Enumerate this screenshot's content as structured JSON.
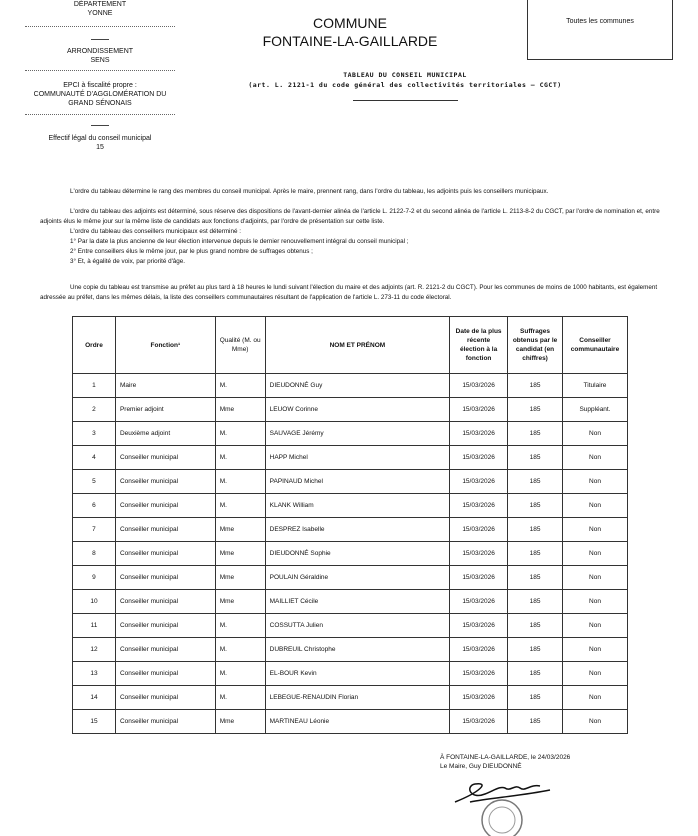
{
  "left": {
    "departement_label": "DÉPARTEMENT",
    "departement": "YONNE",
    "arrondissement_label": "ARRONDISSEMENT",
    "arrondissement": "SENS",
    "epci_label": "EPCI à fiscalité propre :",
    "epci_line1": "COMMUNAUTÉ D'AGGLOMÉRATION DU",
    "epci_line2": "GRAND SÉNONAIS",
    "effectif_label": "Effectif légal du conseil municipal",
    "effectif": "15"
  },
  "header": {
    "commune_label": "COMMUNE",
    "commune": "FONTAINE-LA-GAILLARDE",
    "box_text": "Toutes les communes",
    "title": "TABLEAU DU CONSEIL MUNICIPAL",
    "subtitle": "(art. L. 2121-1 du code général des collectivités territoriales – CGCT)"
  },
  "paragraphs": {
    "p1": "L'ordre du tableau détermine le rang des membres du conseil municipal. Après le maire, prennent rang, dans l'ordre du tableau, les adjoints puis les conseillers municipaux.",
    "p2": "L'ordre du tableau des adjoints est déterminé, sous réserve des dispositions de l'avant-dernier alinéa de l'article L. 2122-7-2 et du second alinéa de l'article L. 2113-8-2 du CGCT, par l'ordre de nomination et, entre adjoints élus le même jour sur la même liste de candidats aux fonctions d'adjoints, par l'ordre de présentation sur cette liste.",
    "p3": "L'ordre du tableau des conseillers municipaux est déterminé :",
    "p4": "1° Par la date la plus ancienne de leur élection intervenue depuis le dernier renouvellement intégral du conseil municipal ;",
    "p5": "2° Entre conseillers élus le même jour, par le plus grand nombre de suffrages obtenus ;",
    "p6": "3° Et, à égalité de voix, par priorité d'âge.",
    "p7": "Une copie du tableau est transmise au préfet au plus tard à 18 heures le lundi suivant l'élection du maire et des adjoints (art. R. 2121-2 du CGCT). Pour les communes de moins de 1000 habitants, est également adressée au préfet, dans les mêmes délais, la liste des conseillers communautaires résultant de l'application de l'article L. 273-11 du code électoral."
  },
  "table": {
    "headers": [
      "Ordre",
      "Fonction¹",
      "Qualité (M. ou Mme)",
      "NOM ET PRÉNOM",
      "Date de la plus récente élection à la fonction",
      "Suffrages obtenus par le candidat (en chiffres)",
      "Conseiller communautaire"
    ],
    "rows": [
      [
        "1",
        "Maire",
        "M.",
        "DIEUDONNÉ Guy",
        "15/03/2026",
        "185",
        "Titulaire"
      ],
      [
        "2",
        "Premier adjoint",
        "Mme",
        "LEUOW Corinne",
        "15/03/2026",
        "185",
        "Suppléant."
      ],
      [
        "3",
        "Deuxième adjoint",
        "M.",
        "SAUVAGE Jérémy",
        "15/03/2026",
        "185",
        "Non"
      ],
      [
        "4",
        "Conseiller municipal",
        "M.",
        "HAPP Michel",
        "15/03/2026",
        "185",
        "Non"
      ],
      [
        "5",
        "Conseiller municipal",
        "M.",
        "PAPINAUD Michel",
        "15/03/2026",
        "185",
        "Non"
      ],
      [
        "6",
        "Conseiller municipal",
        "M.",
        "KLANK William",
        "15/03/2026",
        "185",
        "Non"
      ],
      [
        "7",
        "Conseiller municipal",
        "Mme",
        "DESPREZ Isabelle",
        "15/03/2026",
        "185",
        "Non"
      ],
      [
        "8",
        "Conseiller municipal",
        "Mme",
        "DIEUDONNÉ Sophie",
        "15/03/2026",
        "185",
        "Non"
      ],
      [
        "9",
        "Conseiller municipal",
        "Mme",
        "POULAIN Géraldine",
        "15/03/2026",
        "185",
        "Non"
      ],
      [
        "10",
        "Conseiller municipal",
        "Mme",
        "MAILLIET Cécile",
        "15/03/2026",
        "185",
        "Non"
      ],
      [
        "11",
        "Conseiller municipal",
        "M.",
        "COSSUTTA Julien",
        "15/03/2026",
        "185",
        "Non"
      ],
      [
        "12",
        "Conseiller municipal",
        "M.",
        "DUBREUIL Christophe",
        "15/03/2026",
        "185",
        "Non"
      ],
      [
        "13",
        "Conseiller municipal",
        "M.",
        "EL-BOUR Kevin",
        "15/03/2026",
        "185",
        "Non"
      ],
      [
        "14",
        "Conseiller municipal",
        "M.",
        "LEBEGUE-RENAUDIN Florian",
        "15/03/2026",
        "185",
        "Non"
      ],
      [
        "15",
        "Conseiller municipal",
        "Mme",
        "MARTINEAU Léonie",
        "15/03/2026",
        "185",
        "Non"
      ]
    ]
  },
  "signature": {
    "place_date": "À FONTAINE-LA-GAILLARDE, le 24/03/2026",
    "signer": "Le Maire, Guy DIEUDONNÉ",
    "handwritten": "Dieudonné"
  }
}
